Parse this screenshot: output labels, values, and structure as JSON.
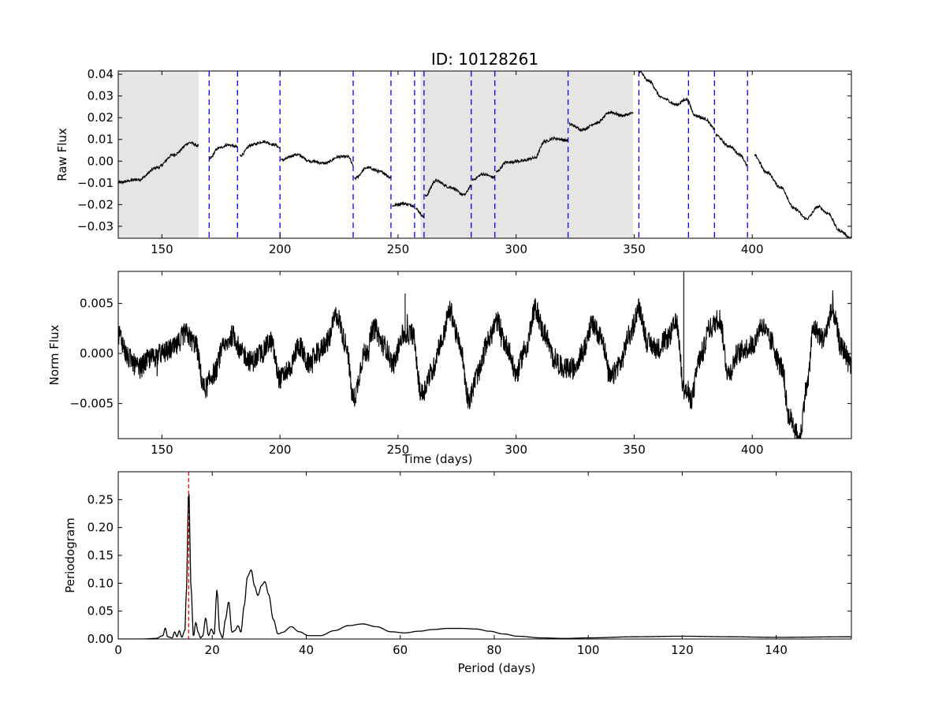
{
  "title": "ID: 10128261",
  "chart_data": [
    {
      "type": "line",
      "panel": "raw",
      "title": "ID: 10128261",
      "xlabel": "",
      "ylabel": "Raw Flux",
      "xlim": [
        131.5,
        442
      ],
      "ylim": [
        -0.0355,
        0.0415
      ],
      "xticks": [
        150,
        200,
        250,
        300,
        350,
        400
      ],
      "xtick_labels": [
        "150",
        "200",
        "250",
        "300",
        "350",
        "400"
      ],
      "yticks": [
        -0.03,
        -0.02,
        -0.01,
        0.0,
        0.01,
        0.02,
        0.03,
        0.04
      ],
      "ytick_labels": [
        "−0.03",
        "−0.02",
        "−0.01",
        "0.00",
        "0.01",
        "0.02",
        "0.03",
        "0.04"
      ],
      "shaded_ranges": [
        [
          131.5,
          165.5
        ],
        [
          259.5,
          349.5
        ]
      ],
      "shade_color": "#e5e5e5",
      "gap_lines": [
        170,
        182,
        200,
        231,
        247,
        257,
        261,
        281,
        291,
        322,
        352,
        373,
        384,
        398
      ],
      "gap_line_color": "#0000ff",
      "segments": [
        {
          "x": [
            131.5,
            140,
            148,
            155,
            162,
            165.5
          ],
          "y": [
            -0.0098,
            -0.0085,
            -0.003,
            0.003,
            0.0085,
            0.007
          ]
        },
        {
          "x": [
            170,
            174,
            178,
            182
          ],
          "y": [
            0.001,
            0.006,
            0.0075,
            0.0065
          ]
        },
        {
          "x": [
            183,
            188,
            193,
            198,
            200
          ],
          "y": [
            0.0025,
            0.0075,
            0.009,
            0.0075,
            0.006
          ]
        },
        {
          "x": [
            200.5,
            207,
            213,
            219,
            225,
            229,
            231
          ],
          "y": [
            0.0005,
            0.003,
            0.0,
            -0.001,
            0.002,
            0.002,
            -0.002
          ]
        },
        {
          "x": [
            231.5,
            237,
            243,
            247
          ],
          "y": [
            -0.008,
            -0.003,
            -0.005,
            -0.0075
          ]
        },
        {
          "x": [
            247.5,
            252,
            257
          ],
          "y": [
            -0.0205,
            -0.0195,
            -0.0205
          ]
        },
        {
          "x": [
            257.5,
            261
          ],
          "y": [
            -0.022,
            -0.0255
          ]
        },
        {
          "x": [
            261.5,
            266,
            272,
            278,
            281
          ],
          "y": [
            -0.016,
            -0.009,
            -0.012,
            -0.0155,
            -0.0115
          ]
        },
        {
          "x": [
            281.5,
            286,
            291
          ],
          "y": [
            -0.0085,
            -0.006,
            -0.0075
          ]
        },
        {
          "x": [
            291.5,
            296,
            302,
            308,
            312,
            316,
            322
          ],
          "y": [
            -0.005,
            -0.0005,
            0.0,
            0.0015,
            0.009,
            0.0105,
            0.0095
          ]
        },
        {
          "x": [
            322.5,
            328,
            334,
            340,
            345,
            349.5
          ],
          "y": [
            0.017,
            0.0145,
            0.0175,
            0.0225,
            0.021,
            0.022
          ]
        },
        {
          "x": [
            352,
            356,
            362,
            368,
            372,
            376,
            380,
            384
          ],
          "y": [
            0.0415,
            0.037,
            0.029,
            0.026,
            0.0285,
            0.021,
            0.0195,
            0.015
          ]
        },
        {
          "x": [
            384.5,
            390,
            395,
            398
          ],
          "y": [
            0.012,
            0.007,
            0.003,
            -0.002
          ]
        },
        {
          "x": [
            401,
            406,
            412,
            418,
            423,
            428,
            432,
            437,
            442
          ],
          "y": [
            0.0025,
            -0.005,
            -0.012,
            -0.022,
            -0.0265,
            -0.021,
            -0.024,
            -0.032,
            -0.0355
          ]
        }
      ]
    },
    {
      "type": "line",
      "panel": "norm",
      "xlabel": "Time (days)",
      "ylabel": "Norm Flux",
      "xlim": [
        131.5,
        442
      ],
      "ylim": [
        -0.0085,
        0.0082
      ],
      "xticks": [
        150,
        200,
        250,
        300,
        350,
        400
      ],
      "xtick_labels": [
        "150",
        "200",
        "250",
        "300",
        "350",
        "400"
      ],
      "yticks": [
        -0.005,
        0.0,
        0.005
      ],
      "ytick_labels": [
        "−0.005",
        "0.000",
        "0.005"
      ],
      "series": [
        {
          "x": [
            131.5,
            136,
            140,
            145,
            150,
            155,
            160,
            164,
            168,
            172,
            176,
            180,
            184,
            188,
            192,
            196,
            200,
            204,
            208,
            212,
            216,
            220,
            224,
            228,
            231,
            236,
            240,
            244,
            248,
            252,
            256,
            260,
            264,
            268,
            272,
            276,
            280,
            284,
            288,
            292,
            296,
            300,
            304,
            308,
            312,
            316,
            320,
            324,
            328,
            332,
            336,
            340,
            344,
            348,
            352,
            356,
            360,
            364,
            368,
            371,
            374,
            378,
            382,
            386,
            390,
            394,
            397,
            400,
            404,
            408,
            412,
            416,
            420,
            423,
            426,
            430,
            434,
            438,
            442
          ],
          "y": [
            0.002,
            -0.0005,
            -0.0015,
            -0.0005,
            0.0,
            0.0005,
            0.002,
            0.001,
            -0.0035,
            -0.002,
            0.0005,
            0.0018,
            0.0,
            -0.0008,
            0.0,
            0.0012,
            -0.0025,
            -0.0015,
            0.0008,
            -0.001,
            0.0,
            0.0012,
            0.0038,
            0.001,
            -0.0045,
            0.0,
            0.0025,
            0.0008,
            -0.001,
            0.0018,
            0.002,
            -0.004,
            -0.002,
            0.001,
            0.0042,
            0.001,
            -0.0045,
            -0.002,
            0.0012,
            0.0032,
            0.0008,
            -0.002,
            0.0005,
            0.0045,
            0.002,
            -0.0005,
            -0.0015,
            -0.0015,
            0.0,
            0.0028,
            0.0018,
            -0.0025,
            -0.001,
            0.0018,
            0.0045,
            0.001,
            0.0005,
            0.0015,
            0.003,
            -0.0035,
            -0.0045,
            -0.0005,
            0.0025,
            0.0035,
            -0.002,
            0.0,
            0.0005,
            0.0008,
            0.0028,
            0.0012,
            -0.0012,
            -0.0065,
            -0.0085,
            -0.0035,
            0.0025,
            0.0015,
            0.0042,
            0.0005,
            -0.001
          ]
        }
      ],
      "spikes": [
        {
          "x": 371,
          "y": 0.0082
        },
        {
          "x": 253,
          "y": 0.006
        }
      ],
      "noise_amplitude": 0.0011
    },
    {
      "type": "line",
      "panel": "periodogram",
      "xlabel": "Period (days)",
      "ylabel": "Periodogram",
      "xlim": [
        0,
        156
      ],
      "ylim": [
        0.0,
        0.3
      ],
      "xticks": [
        0,
        20,
        40,
        60,
        80,
        100,
        120,
        140
      ],
      "xtick_labels": [
        "0",
        "20",
        "40",
        "60",
        "80",
        "100",
        "120",
        "140"
      ],
      "yticks": [
        0.0,
        0.05,
        0.1,
        0.15,
        0.2,
        0.25
      ],
      "ytick_labels": [
        "0.00",
        "0.05",
        "0.10",
        "0.15",
        "0.20",
        "0.25"
      ],
      "peak_period": 15.0,
      "peak_line_color": "#ff0000",
      "series": [
        {
          "x": [
            0,
            5,
            8,
            9.5,
            10,
            10.5,
            11.5,
            12,
            12.5,
            13,
            13.5,
            14.2,
            14.5,
            15.0,
            15.5,
            16,
            16.5,
            17.0,
            17.5,
            18.0,
            18.6,
            19.2,
            19.8,
            20.4,
            21.0,
            21.6,
            22.2,
            22.8,
            23.5,
            24.2,
            24.8,
            25.5,
            26.1,
            26.8,
            27.5,
            28.3,
            29.0,
            29.7,
            30.5,
            31.2,
            32.0,
            33.0,
            34.0,
            35.0,
            36.8,
            38.5,
            40.5,
            43,
            46,
            49,
            52,
            55,
            58,
            61,
            64,
            67,
            70,
            73,
            76,
            79,
            82,
            85,
            90,
            95,
            100,
            110,
            120,
            130,
            140,
            156
          ],
          "y": [
            0.0,
            0.0,
            0.001,
            0.006,
            0.02,
            0.004,
            0.002,
            0.013,
            0.004,
            0.015,
            0.003,
            0.016,
            0.09,
            0.27,
            0.09,
            0.004,
            0.03,
            0.012,
            0.002,
            0.006,
            0.038,
            0.006,
            0.018,
            0.008,
            0.088,
            0.012,
            0.002,
            0.035,
            0.067,
            0.012,
            0.015,
            0.024,
            0.012,
            0.06,
            0.112,
            0.124,
            0.095,
            0.078,
            0.096,
            0.103,
            0.08,
            0.035,
            0.009,
            0.012,
            0.022,
            0.013,
            0.006,
            0.006,
            0.015,
            0.024,
            0.027,
            0.022,
            0.013,
            0.011,
            0.014,
            0.017,
            0.019,
            0.019,
            0.018,
            0.014,
            0.009,
            0.005,
            0.002,
            0.001,
            0.002,
            0.004,
            0.005,
            0.004,
            0.003,
            0.004
          ]
        }
      ]
    }
  ]
}
